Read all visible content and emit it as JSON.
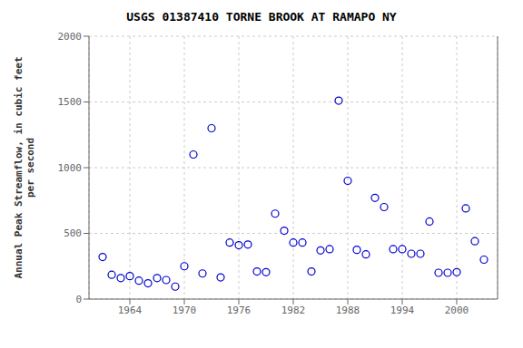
{
  "chart_data": {
    "type": "scatter",
    "title": "USGS 01387410 TORNE BROOK AT RAMAPO NY",
    "ylabel": "Annual Peak Streamflow, in cubic feet\nper second",
    "x": [
      1961,
      1962,
      1963,
      1964,
      1965,
      1966,
      1967,
      1968,
      1969,
      1970,
      1971,
      1972,
      1973,
      1974,
      1975,
      1976,
      1977,
      1978,
      1979,
      1980,
      1981,
      1982,
      1983,
      1984,
      1985,
      1986,
      1987,
      1988,
      1989,
      1990,
      1991,
      1992,
      1993,
      1994,
      1995,
      1996,
      1997,
      1998,
      1999,
      2000,
      2001,
      2002,
      2003
    ],
    "values": [
      320,
      185,
      160,
      175,
      140,
      120,
      160,
      145,
      95,
      250,
      1100,
      195,
      1300,
      165,
      430,
      410,
      415,
      210,
      205,
      650,
      520,
      430,
      430,
      210,
      370,
      380,
      1510,
      900,
      375,
      340,
      770,
      700,
      380,
      380,
      345,
      345,
      590,
      200,
      200,
      205,
      690,
      440,
      300
    ],
    "color": "#0000cc",
    "marker": "open_circle",
    "xlim": [
      1959.5,
      2004.5
    ],
    "ylim": [
      0,
      2000
    ],
    "xticks": [
      1964,
      1970,
      1976,
      1982,
      1988,
      1994,
      2000
    ],
    "yticks": [
      0,
      500,
      1000,
      1500,
      2000
    ],
    "grid": true
  }
}
